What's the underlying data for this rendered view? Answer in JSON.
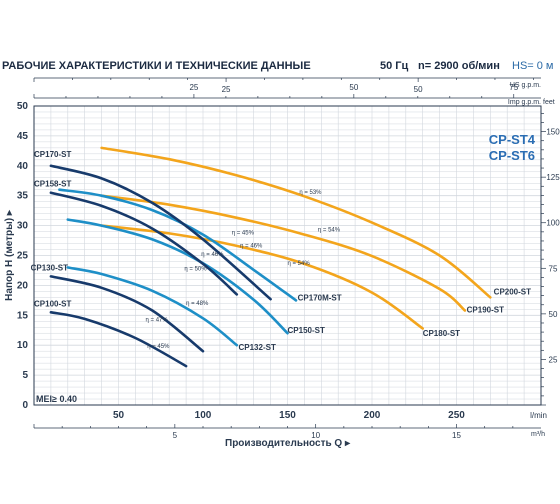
{
  "header": {
    "title": "РАБОЧИЕ ХАРАКТЕРИСТИКИ И ТЕХНИЧЕСКИЕ ДАННЫЕ",
    "frequency": "50 Гц",
    "speed": "n= 2900 об/мин",
    "hs": "HS= 0 м"
  },
  "colors": {
    "orange": "#f3a51c",
    "blue": "#1e8fc7",
    "navy": "#173a6b",
    "axis": "#2a3a4f",
    "grid": "#d2d7de"
  },
  "chart_data": {
    "type": "line",
    "legend_title": [
      "CP-ST4",
      "CP-ST6"
    ],
    "xlabel": "Производительность Q",
    "ylabel": "Напор H (метры)",
    "mei": "MEI≥ 0.40",
    "x_unit": "l/min",
    "xlim": [
      0,
      300
    ],
    "ylim": [
      0,
      50
    ],
    "x_ticks": [
      50,
      100,
      150,
      200,
      250
    ],
    "y_ticks": [
      0,
      5,
      10,
      15,
      20,
      25,
      30,
      35,
      40,
      45,
      50
    ],
    "secondary_axes": {
      "us_gpm": {
        "label": "US g.p.m.",
        "ticks": [
          25,
          50,
          75
        ],
        "factor": 3.785
      },
      "imp_gpm": {
        "label": "Imp g.p.m.",
        "ticks": [
          25,
          50
        ],
        "factor": 4.546
      },
      "m3h": {
        "label": "m³/h",
        "ticks": [
          5,
          10,
          15
        ],
        "factor": 16.667
      },
      "feet": {
        "label": "feet",
        "ticks": [
          25,
          50,
          75,
          100,
          125,
          150
        ],
        "factor": 0.3048
      }
    },
    "series": [
      {
        "name": "CP200-ST",
        "color": "orange",
        "x": [
          40,
          80,
          120,
          160,
          200,
          240,
          270
        ],
        "y": [
          43,
          41.1,
          38.4,
          34.9,
          30.5,
          25.0,
          18.0
        ]
      },
      {
        "name": "CP190-ST",
        "color": "orange",
        "x": [
          40,
          80,
          120,
          160,
          200,
          240,
          255
        ],
        "y": [
          35,
          33.5,
          31.3,
          28.5,
          24.9,
          19.4,
          15.8
        ]
      },
      {
        "name": "CP180-ST",
        "color": "orange",
        "x": [
          40,
          80,
          120,
          160,
          200,
          230
        ],
        "y": [
          30,
          28.7,
          26.6,
          23.6,
          18.8,
          12.8
        ]
      },
      {
        "name": "CP170M-ST",
        "color": "blue",
        "x": [
          15,
          40,
          70,
          100,
          130,
          155
        ],
        "y": [
          36,
          35.0,
          32.6,
          28.5,
          22.6,
          17.5
        ]
      },
      {
        "name": "CP150-ST",
        "color": "blue",
        "x": [
          20,
          40,
          70,
          100,
          130,
          150
        ],
        "y": [
          31,
          30.0,
          27.7,
          23.7,
          17.6,
          12.0
        ]
      },
      {
        "name": "CP132-ST",
        "color": "blue",
        "x": [
          20,
          40,
          70,
          100,
          120
        ],
        "y": [
          23,
          21.9,
          19.1,
          14.5,
          10.0
        ]
      },
      {
        "name": "CP170-ST",
        "color": "navy",
        "x": [
          10,
          40,
          70,
          100,
          140
        ],
        "y": [
          40,
          37.9,
          33.8,
          27.7,
          17.7
        ]
      },
      {
        "name": "CP158-ST",
        "color": "navy",
        "x": [
          10,
          40,
          70,
          100,
          120
        ],
        "y": [
          35.5,
          33.3,
          29.5,
          23.6,
          18.5
        ]
      },
      {
        "name": "CP130-ST",
        "color": "navy",
        "x": [
          10,
          40,
          70,
          100
        ],
        "y": [
          21.5,
          19.6,
          15.8,
          9.0
        ]
      },
      {
        "name": "CP100-ST",
        "color": "navy",
        "x": [
          10,
          30,
          60,
          90
        ],
        "y": [
          15.5,
          14.4,
          11.2,
          6.5
        ]
      }
    ],
    "series_labels": [
      {
        "name": "CP200-ST",
        "x": 272,
        "y": 18.5
      },
      {
        "name": "CP190-ST",
        "x": 256,
        "y": 15.5
      },
      {
        "name": "CP180-ST",
        "x": 230,
        "y": 11.5
      },
      {
        "name": "CP170M-ST",
        "x": 156,
        "y": 17.5
      },
      {
        "name": "CP150-ST",
        "x": 150,
        "y": 12.0
      },
      {
        "name": "CP132-ST",
        "x": 121,
        "y": 9.2
      },
      {
        "name": "CP170-ST",
        "x": 0,
        "y": 41.5
      },
      {
        "name": "CP158-ST",
        "x": 0,
        "y": 36.5
      },
      {
        "name": "CP130-ST",
        "x": -2,
        "y": 22.5
      },
      {
        "name": "CP100-ST",
        "x": 0,
        "y": 16.5
      }
    ],
    "annotations": [
      {
        "text": "η = 53%",
        "x": 157,
        "y": 35.3
      },
      {
        "text": "η = 54%",
        "x": 168,
        "y": 29.0
      },
      {
        "text": "η = 54%",
        "x": 150,
        "y": 23.4
      },
      {
        "text": "η = 45%",
        "x": 117,
        "y": 28.5
      },
      {
        "text": "η = 46%",
        "x": 122,
        "y": 26.3
      },
      {
        "text": "η = 46%",
        "x": 99,
        "y": 24.9
      },
      {
        "text": "η = 50%",
        "x": 89,
        "y": 22.5
      },
      {
        "text": "η = 48%",
        "x": 90,
        "y": 16.7
      },
      {
        "text": "η = 47%",
        "x": 66,
        "y": 14.0
      },
      {
        "text": "η = 45%",
        "x": 67,
        "y": 9.5
      }
    ]
  }
}
